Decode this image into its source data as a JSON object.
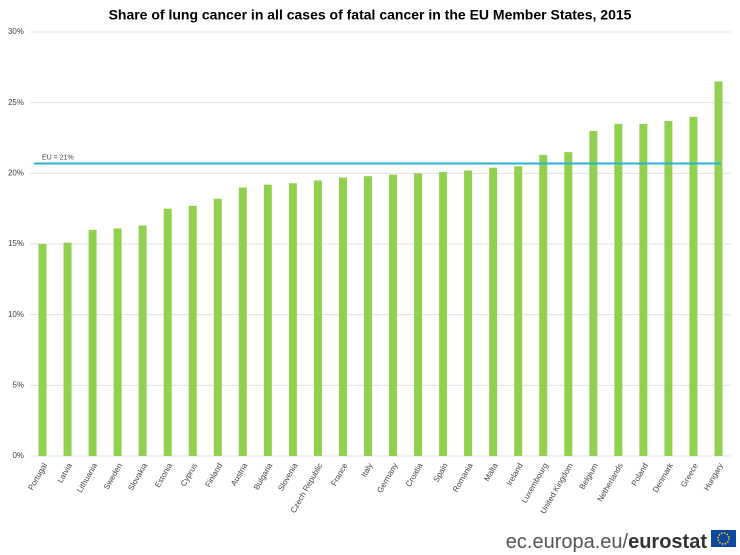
{
  "chart_data": {
    "type": "bar",
    "title": "Share of lung cancer in all cases of fatal cancer in the EU Member States, 2015",
    "categories": [
      "Portugal",
      "Latvia",
      "Lithuania",
      "Sweden",
      "Slovakia",
      "Estonia",
      "Cyprus",
      "Finland",
      "Austria",
      "Bulgaria",
      "Slovenia",
      "Czech Republic",
      "France",
      "Italy",
      "Germany",
      "Croatia",
      "Spain",
      "Romania",
      "Malta",
      "Ireland",
      "Luxembourg",
      "United Kingdom",
      "Belgium",
      "Netherlands",
      "Poland",
      "Denmark",
      "Greece",
      "Hungary"
    ],
    "values": [
      15.0,
      15.1,
      16.0,
      16.1,
      16.3,
      17.5,
      17.7,
      18.2,
      19.0,
      19.2,
      19.3,
      19.5,
      19.7,
      19.8,
      19.9,
      20.0,
      20.1,
      20.2,
      20.4,
      20.5,
      21.3,
      21.5,
      23.0,
      23.5,
      23.5,
      23.7,
      24.0,
      26.5
    ],
    "color": "#92d050",
    "ylim": [
      0,
      30
    ],
    "yticks": [
      {
        "value": 0,
        "label": "0%"
      },
      {
        "value": 5,
        "label": "5%"
      },
      {
        "value": 10,
        "label": "10%"
      },
      {
        "value": 15,
        "label": "15%"
      },
      {
        "value": 20,
        "label": "20%"
      },
      {
        "value": 25,
        "label": "25%"
      },
      {
        "value": 30,
        "label": "30%"
      }
    ],
    "grid": true,
    "reference_line": {
      "value": 20.7,
      "label": "EU = 21%",
      "color": "#2eb1d6"
    },
    "footer": {
      "prefix": "ec.europa.eu/",
      "brand": "eurostat"
    }
  }
}
